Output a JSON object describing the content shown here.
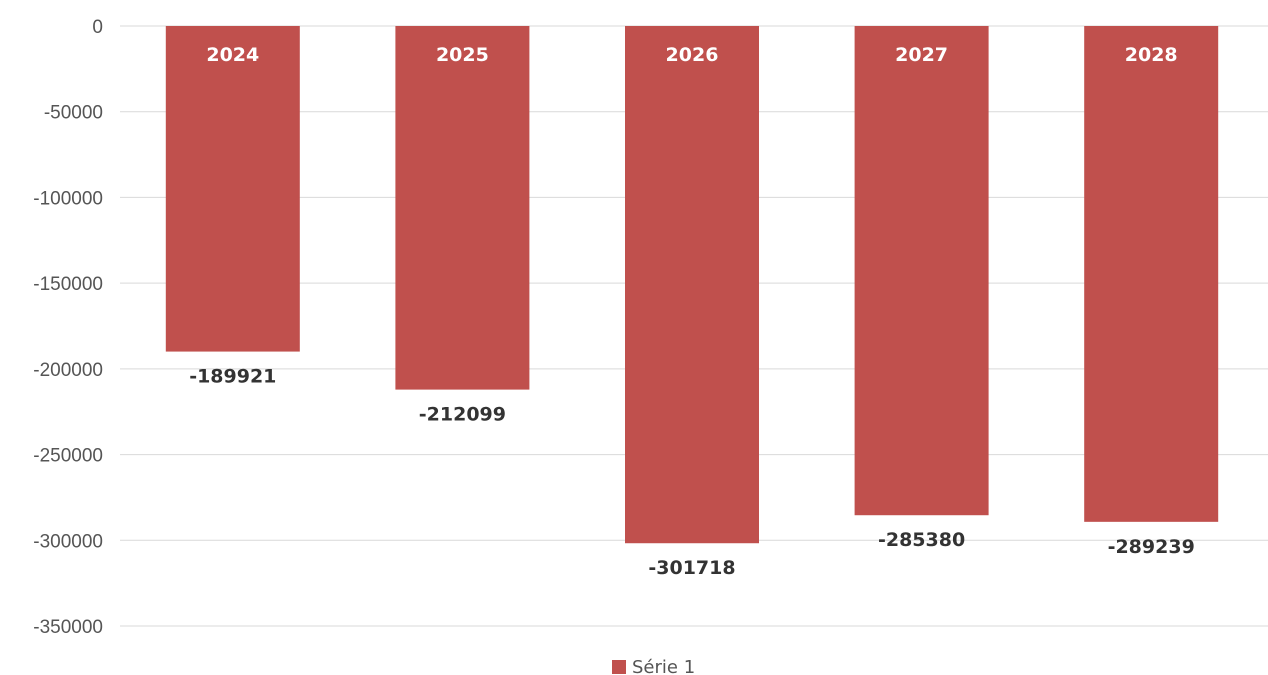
{
  "chart_data": {
    "type": "bar",
    "categories": [
      "2024",
      "2025",
      "2026",
      "2027",
      "2028"
    ],
    "series": [
      {
        "name": "Série 1",
        "values": [
          -189921,
          -212099,
          -301718,
          -285380,
          -289239
        ],
        "color": "#c0504d"
      }
    ],
    "ylim": [
      -350000,
      0
    ],
    "yticks": [
      0,
      -50000,
      -100000,
      -150000,
      -200000,
      -250000,
      -300000,
      -350000
    ],
    "grid": true,
    "legend": "bottom",
    "category_labels_position": "inside-top",
    "data_labels": [
      "-189921",
      "-212099",
      "-301718",
      "-285380",
      "-289239"
    ]
  }
}
